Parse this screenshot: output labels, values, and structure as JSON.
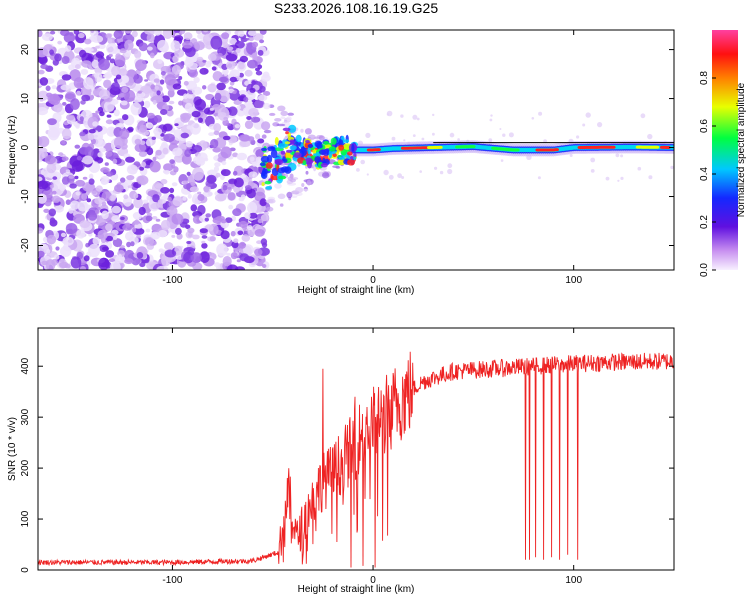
{
  "title": "S233.2026.108.16.19.G25",
  "chart_data": [
    {
      "type": "heatmap",
      "xlabel": "Height of straight line (km)",
      "ylabel": "Frequency (Hz)",
      "xlim": [
        -167,
        150
      ],
      "ylim": [
        -25,
        24
      ],
      "xticks": [
        -100,
        0,
        100
      ],
      "yticks": [
        -20,
        -10,
        0,
        10,
        20
      ],
      "xtick_labels": [
        "-100",
        "0",
        "100"
      ],
      "ytick_labels": [
        "-20",
        "-10",
        "0",
        "10",
        "20"
      ],
      "noise_region_km": [
        -167,
        -53
      ],
      "transition_region_km": [
        -53,
        -10
      ],
      "signal_line": [
        {
          "km": -52,
          "hz": -4.0
        },
        {
          "km": -46,
          "hz": -2.0
        },
        {
          "km": -40,
          "hz": 0.5
        },
        {
          "km": -34,
          "hz": -1.0
        },
        {
          "km": -28,
          "hz": -1.5
        },
        {
          "km": -22,
          "hz": -1.0
        },
        {
          "km": -16,
          "hz": -0.8
        },
        {
          "km": -10,
          "hz": -0.5
        },
        {
          "km": 0,
          "hz": -0.5
        },
        {
          "km": 10,
          "hz": -0.2
        },
        {
          "km": 30,
          "hz": 0.0
        },
        {
          "km": 50,
          "hz": 0.2
        },
        {
          "km": 70,
          "hz": -0.5
        },
        {
          "km": 90,
          "hz": -0.5
        },
        {
          "km": 100,
          "hz": 0.0
        },
        {
          "km": 130,
          "hz": 0.1
        },
        {
          "km": 150,
          "hz": 0.0
        }
      ],
      "colorbar": {
        "label": "Normalized spectral amplitude",
        "range": [
          0.0,
          1.0
        ],
        "ticks": [
          0.0,
          0.2,
          0.4,
          0.6,
          0.8
        ],
        "tick_labels": [
          "0.0",
          "0.2",
          "0.4",
          "0.6",
          "0.8"
        ],
        "colors": [
          "#ffffff",
          "#e8c8f8",
          "#7a1ee8",
          "#1428ff",
          "#00c8ff",
          "#00ff40",
          "#e8ff00",
          "#ff8000",
          "#ff1010",
          "#ff40a0"
        ]
      }
    },
    {
      "type": "line",
      "xlabel": "Height of straight line (km)",
      "ylabel": "SNR (10 * v/v)",
      "xlim": [
        -167,
        150
      ],
      "ylim": [
        0,
        475
      ],
      "xticks": [
        -100,
        0,
        100
      ],
      "yticks": [
        0,
        100,
        200,
        300,
        400
      ],
      "xtick_labels": [
        "-100",
        "0",
        "100"
      ],
      "ytick_labels": [
        "0",
        "100",
        "200",
        "300",
        "400"
      ],
      "series": [
        {
          "name": "SNR",
          "color": "#ee2222",
          "points": [
            {
              "km": -167,
              "snr": 15
            },
            {
              "km": -100,
              "snr": 15
            },
            {
              "km": -60,
              "snr": 18
            },
            {
              "km": -47,
              "snr": 35
            },
            {
              "km": -42,
              "snr": 150
            },
            {
              "km": -38,
              "snr": 60
            },
            {
              "km": -32,
              "snr": 120
            },
            {
              "km": -26,
              "snr": 170
            },
            {
              "km": -20,
              "snr": 190
            },
            {
              "km": -12,
              "snr": 230
            },
            {
              "km": -5,
              "snr": 270
            },
            {
              "km": 5,
              "snr": 300
            },
            {
              "km": 15,
              "snr": 340
            },
            {
              "km": 25,
              "snr": 370
            },
            {
              "km": 40,
              "snr": 390
            },
            {
              "km": 60,
              "snr": 395
            },
            {
              "km": 80,
              "snr": 400
            },
            {
              "km": 100,
              "snr": 405
            },
            {
              "km": 120,
              "snr": 408
            },
            {
              "km": 150,
              "snr": 410
            }
          ],
          "spikes_up": [
            {
              "km": -25,
              "snr": 395
            },
            {
              "km": -9,
              "snr": 340
            },
            {
              "km": -3,
              "snr": 320
            }
          ],
          "dropouts": [
            {
              "km": -11,
              "snr": 5
            },
            {
              "km": -5,
              "snr": 8
            },
            {
              "km": 1,
              "snr": 5
            },
            {
              "km": 76,
              "snr": 20
            },
            {
              "km": 78,
              "snr": 20
            },
            {
              "km": 81,
              "snr": 25
            },
            {
              "km": 85,
              "snr": 20
            },
            {
              "km": 89,
              "snr": 25
            },
            {
              "km": 93,
              "snr": 20
            },
            {
              "km": 97,
              "snr": 30
            },
            {
              "km": 102,
              "snr": 20
            }
          ]
        }
      ]
    }
  ]
}
